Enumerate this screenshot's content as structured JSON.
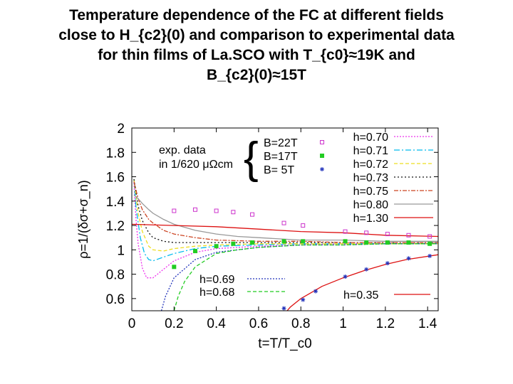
{
  "slide": {
    "title_lines": [
      "Temperature dependence of the FC at different fields",
      "close to H_{c2}(0) and comparison to experimental data",
      "for thin films of La.SCO with T_{c0}≈19K and",
      "B_{c2}(0)≈15T"
    ]
  },
  "colors": {
    "magenta": "#cc33cc",
    "green": "#22cc22",
    "blue": "#2233bb",
    "red": "#dd1111"
  },
  "chart_data": {
    "type": "line",
    "xlabel": "t=T/T_c0",
    "ylabel": "ρ=1/(δσ+σ_n)",
    "xlim": [
      0,
      1.45
    ],
    "ylim": [
      0.5,
      2.0
    ],
    "xticks": [
      0,
      0.2,
      0.4,
      0.6,
      0.8,
      1,
      1.2,
      1.4
    ],
    "xtick_labels": [
      "0",
      "0.2",
      "0.4",
      "0.6",
      "0.8",
      "1",
      "1.2",
      "1.4"
    ],
    "yticks": [
      0.6,
      0.8,
      1.0,
      1.2,
      1.4,
      1.6,
      1.8,
      2.0
    ],
    "ytick_labels": [
      "0.6",
      "0.8",
      "1",
      "1.2",
      "1.4",
      "1.6",
      "1.8",
      "2"
    ],
    "annotation": {
      "line1": "exp. data",
      "line2": "in 1/620 μΩcm"
    },
    "exp_series": [
      {
        "name": "B=22T",
        "marker": "open-square",
        "color": "#cc33cc",
        "x": [
          0.2,
          0.3,
          0.4,
          0.48,
          0.57,
          0.72,
          0.81,
          1.01,
          1.11,
          1.21,
          1.31,
          1.41
        ],
        "y": [
          1.32,
          1.33,
          1.32,
          1.31,
          1.29,
          1.22,
          1.2,
          1.15,
          1.14,
          1.13,
          1.12,
          1.11
        ]
      },
      {
        "name": "B=17T",
        "marker": "filled-square",
        "color": "#22cc22",
        "x": [
          0.2,
          0.3,
          0.4,
          0.48,
          0.57,
          0.72,
          0.81,
          1.01,
          1.11,
          1.21,
          1.31,
          1.41
        ],
        "y": [
          0.86,
          0.99,
          1.03,
          1.05,
          1.06,
          1.07,
          1.07,
          1.07,
          1.06,
          1.06,
          1.06,
          1.05
        ]
      },
      {
        "name": "B=  5T",
        "marker": "asterisk",
        "color": "#2233bb",
        "x": [
          0.72,
          0.81,
          0.87,
          1.01,
          1.11,
          1.21,
          1.31,
          1.41
        ],
        "y": [
          0.52,
          0.59,
          0.66,
          0.78,
          0.84,
          0.89,
          0.93,
          0.95
        ]
      }
    ],
    "theory_series": [
      {
        "name": "h=0.70",
        "color": "#ee33ee",
        "dash": "2,2",
        "legend": true,
        "x": [
          0.01,
          0.02,
          0.03,
          0.05,
          0.07,
          0.1,
          0.15,
          0.2,
          0.3,
          0.4,
          0.6,
          0.8,
          1.0,
          1.2,
          1.45
        ],
        "y": [
          1.55,
          1.25,
          1.05,
          0.85,
          0.77,
          0.77,
          0.84,
          0.91,
          0.98,
          1.01,
          1.03,
          1.04,
          1.05,
          1.05,
          1.05
        ]
      },
      {
        "name": "h=0.71",
        "color": "#00bbee",
        "dash": "8,3,2,3",
        "legend": true,
        "x": [
          0.01,
          0.02,
          0.04,
          0.06,
          0.08,
          0.1,
          0.15,
          0.2,
          0.3,
          0.4,
          0.6,
          0.8,
          1.0,
          1.2,
          1.45
        ],
        "y": [
          1.58,
          1.35,
          1.1,
          0.97,
          0.92,
          0.91,
          0.94,
          0.97,
          1.01,
          1.03,
          1.04,
          1.05,
          1.05,
          1.05,
          1.05
        ]
      },
      {
        "name": "h=0.72",
        "color": "#eedd22",
        "dash": "5,3",
        "legend": true,
        "x": [
          0.01,
          0.03,
          0.05,
          0.08,
          0.1,
          0.15,
          0.2,
          0.3,
          0.4,
          0.6,
          0.8,
          1.0,
          1.2,
          1.45
        ],
        "y": [
          1.58,
          1.3,
          1.15,
          1.03,
          1.0,
          0.99,
          1.01,
          1.03,
          1.04,
          1.05,
          1.05,
          1.05,
          1.05,
          1.05
        ]
      },
      {
        "name": "h=0.73",
        "color": "#111111",
        "dash": "2,3",
        "legend": true,
        "x": [
          0.01,
          0.03,
          0.05,
          0.08,
          0.1,
          0.15,
          0.2,
          0.3,
          0.4,
          0.6,
          0.8,
          1.0,
          1.2,
          1.45
        ],
        "y": [
          1.58,
          1.36,
          1.24,
          1.14,
          1.1,
          1.07,
          1.06,
          1.06,
          1.06,
          1.06,
          1.06,
          1.06,
          1.06,
          1.06
        ]
      },
      {
        "name": "h=0.75",
        "color": "#cc4422",
        "dash": "6,2,2,2",
        "legend": true,
        "x": [
          0.01,
          0.03,
          0.05,
          0.08,
          0.1,
          0.15,
          0.2,
          0.3,
          0.4,
          0.6,
          0.8,
          1.0,
          1.2,
          1.45
        ],
        "y": [
          1.56,
          1.42,
          1.33,
          1.25,
          1.22,
          1.16,
          1.13,
          1.1,
          1.08,
          1.07,
          1.07,
          1.06,
          1.06,
          1.06
        ]
      },
      {
        "name": "h=0.80",
        "color": "#999999",
        "dash": "",
        "legend": true,
        "x": [
          0.01,
          0.03,
          0.05,
          0.08,
          0.1,
          0.15,
          0.2,
          0.3,
          0.4,
          0.5,
          0.6,
          0.8,
          1.0,
          1.2,
          1.45
        ],
        "y": [
          1.45,
          1.42,
          1.38,
          1.33,
          1.3,
          1.25,
          1.21,
          1.16,
          1.13,
          1.11,
          1.1,
          1.08,
          1.08,
          1.07,
          1.07
        ]
      },
      {
        "name": "h=1.30",
        "color": "#dd1111",
        "dash": "",
        "legend": true,
        "x": [
          0.0,
          0.2,
          0.4,
          0.6,
          0.8,
          1.0,
          1.2,
          1.45
        ],
        "y": [
          1.21,
          1.2,
          1.19,
          1.17,
          1.15,
          1.14,
          1.12,
          1.11
        ]
      },
      {
        "name": "h=0.69",
        "color": "#2233bb",
        "dash": "2,2",
        "legend": true,
        "x": [
          0.14,
          0.16,
          0.2,
          0.3,
          0.4,
          0.6,
          0.8,
          1.0,
          1.2,
          1.45
        ],
        "y": [
          0.5,
          0.62,
          0.77,
          0.92,
          0.98,
          1.02,
          1.04,
          1.04,
          1.05,
          1.05
        ]
      },
      {
        "name": "h=0.68",
        "color": "#22cc22",
        "dash": "5,3",
        "legend": true,
        "x": [
          0.2,
          0.22,
          0.25,
          0.3,
          0.4,
          0.5,
          0.6,
          0.8,
          1.0,
          1.2,
          1.45
        ],
        "y": [
          0.5,
          0.62,
          0.74,
          0.86,
          0.97,
          1.0,
          1.02,
          1.04,
          1.04,
          1.05,
          1.05
        ]
      },
      {
        "name": "h=0.35",
        "color": "#dd1111",
        "dash": "",
        "legend": true,
        "x": [
          0.735,
          0.75,
          0.8,
          0.85,
          0.9,
          1.0,
          1.1,
          1.2,
          1.3,
          1.45
        ],
        "y": [
          0.5,
          0.53,
          0.6,
          0.65,
          0.7,
          0.77,
          0.83,
          0.88,
          0.92,
          0.96
        ]
      }
    ]
  }
}
